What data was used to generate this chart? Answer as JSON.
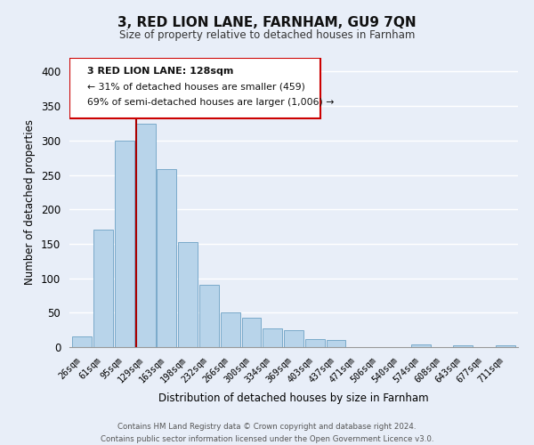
{
  "title": "3, RED LION LANE, FARNHAM, GU9 7QN",
  "subtitle": "Size of property relative to detached houses in Farnham",
  "xlabel": "Distribution of detached houses by size in Farnham",
  "ylabel": "Number of detached properties",
  "bar_labels": [
    "26sqm",
    "61sqm",
    "95sqm",
    "129sqm",
    "163sqm",
    "198sqm",
    "232sqm",
    "266sqm",
    "300sqm",
    "334sqm",
    "369sqm",
    "403sqm",
    "437sqm",
    "471sqm",
    "506sqm",
    "540sqm",
    "574sqm",
    "608sqm",
    "643sqm",
    "677sqm",
    "711sqm"
  ],
  "bar_values": [
    15,
    170,
    300,
    325,
    258,
    153,
    90,
    50,
    43,
    27,
    24,
    12,
    10,
    0,
    0,
    0,
    4,
    0,
    2,
    0,
    2
  ],
  "highlight_index": 3,
  "highlight_color": "#aa0000",
  "bar_color": "#b8d4ea",
  "bar_edge_color": "#7aaaca",
  "annotation_title": "3 RED LION LANE: 128sqm",
  "annotation_line1": "← 31% of detached houses are smaller (459)",
  "annotation_line2": "69% of semi-detached houses are larger (1,006) →",
  "annotation_box_color": "#ffffff",
  "annotation_box_edge": "#cc0000",
  "ylim": [
    0,
    420
  ],
  "yticks": [
    0,
    50,
    100,
    150,
    200,
    250,
    300,
    350,
    400
  ],
  "footer_line1": "Contains HM Land Registry data © Crown copyright and database right 2024.",
  "footer_line2": "Contains public sector information licensed under the Open Government Licence v3.0.",
  "bg_color": "#e8eef8",
  "plot_bg_color": "#e8eef8",
  "grid_color": "#ffffff"
}
